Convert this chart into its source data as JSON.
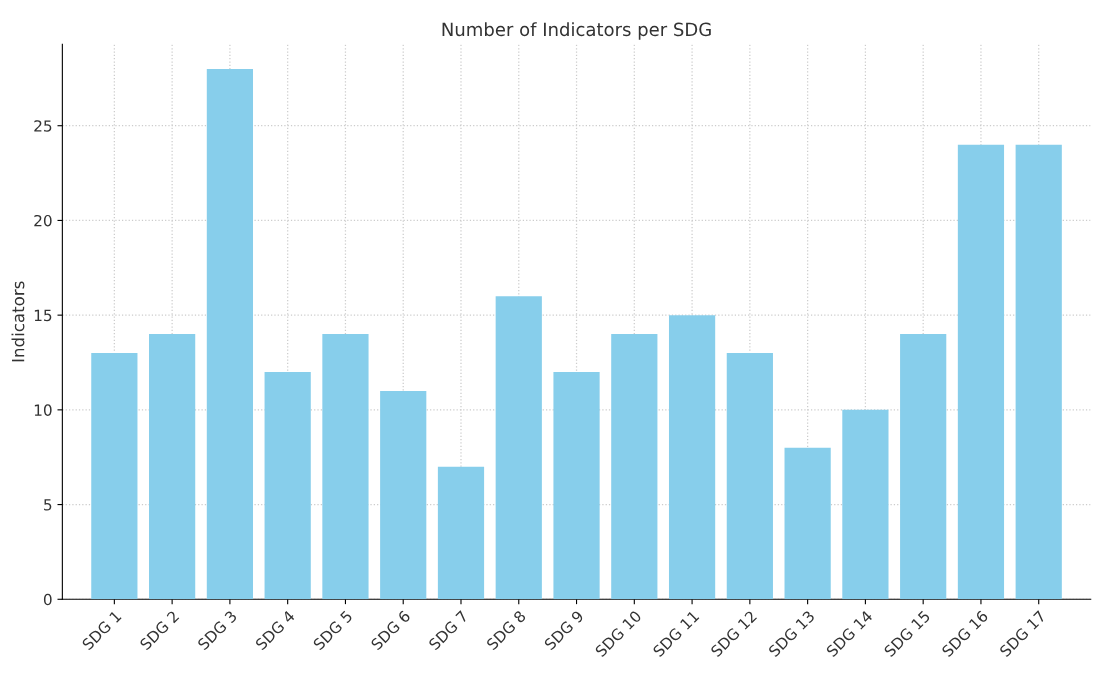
{
  "chart_data": {
    "type": "bar",
    "title": "Number of Indicators per SDG",
    "ylabel": "Indicators",
    "categories": [
      "SDG 1",
      "SDG 2",
      "SDG 3",
      "SDG 4",
      "SDG 5",
      "SDG 6",
      "SDG 7",
      "SDG 8",
      "SDG 9",
      "SDG 10",
      "SDG 11",
      "SDG 12",
      "SDG 13",
      "SDG 14",
      "SDG 15",
      "SDG 16",
      "SDG 17"
    ],
    "values": [
      13,
      14,
      28,
      12,
      14,
      11,
      7,
      16,
      12,
      14,
      15,
      13,
      8,
      10,
      14,
      24,
      24
    ],
    "color": "#87ceeb",
    "ylim": [
      0,
      29.3
    ],
    "yticks": [
      0,
      5,
      10,
      15,
      20,
      25
    ],
    "grid": true
  }
}
